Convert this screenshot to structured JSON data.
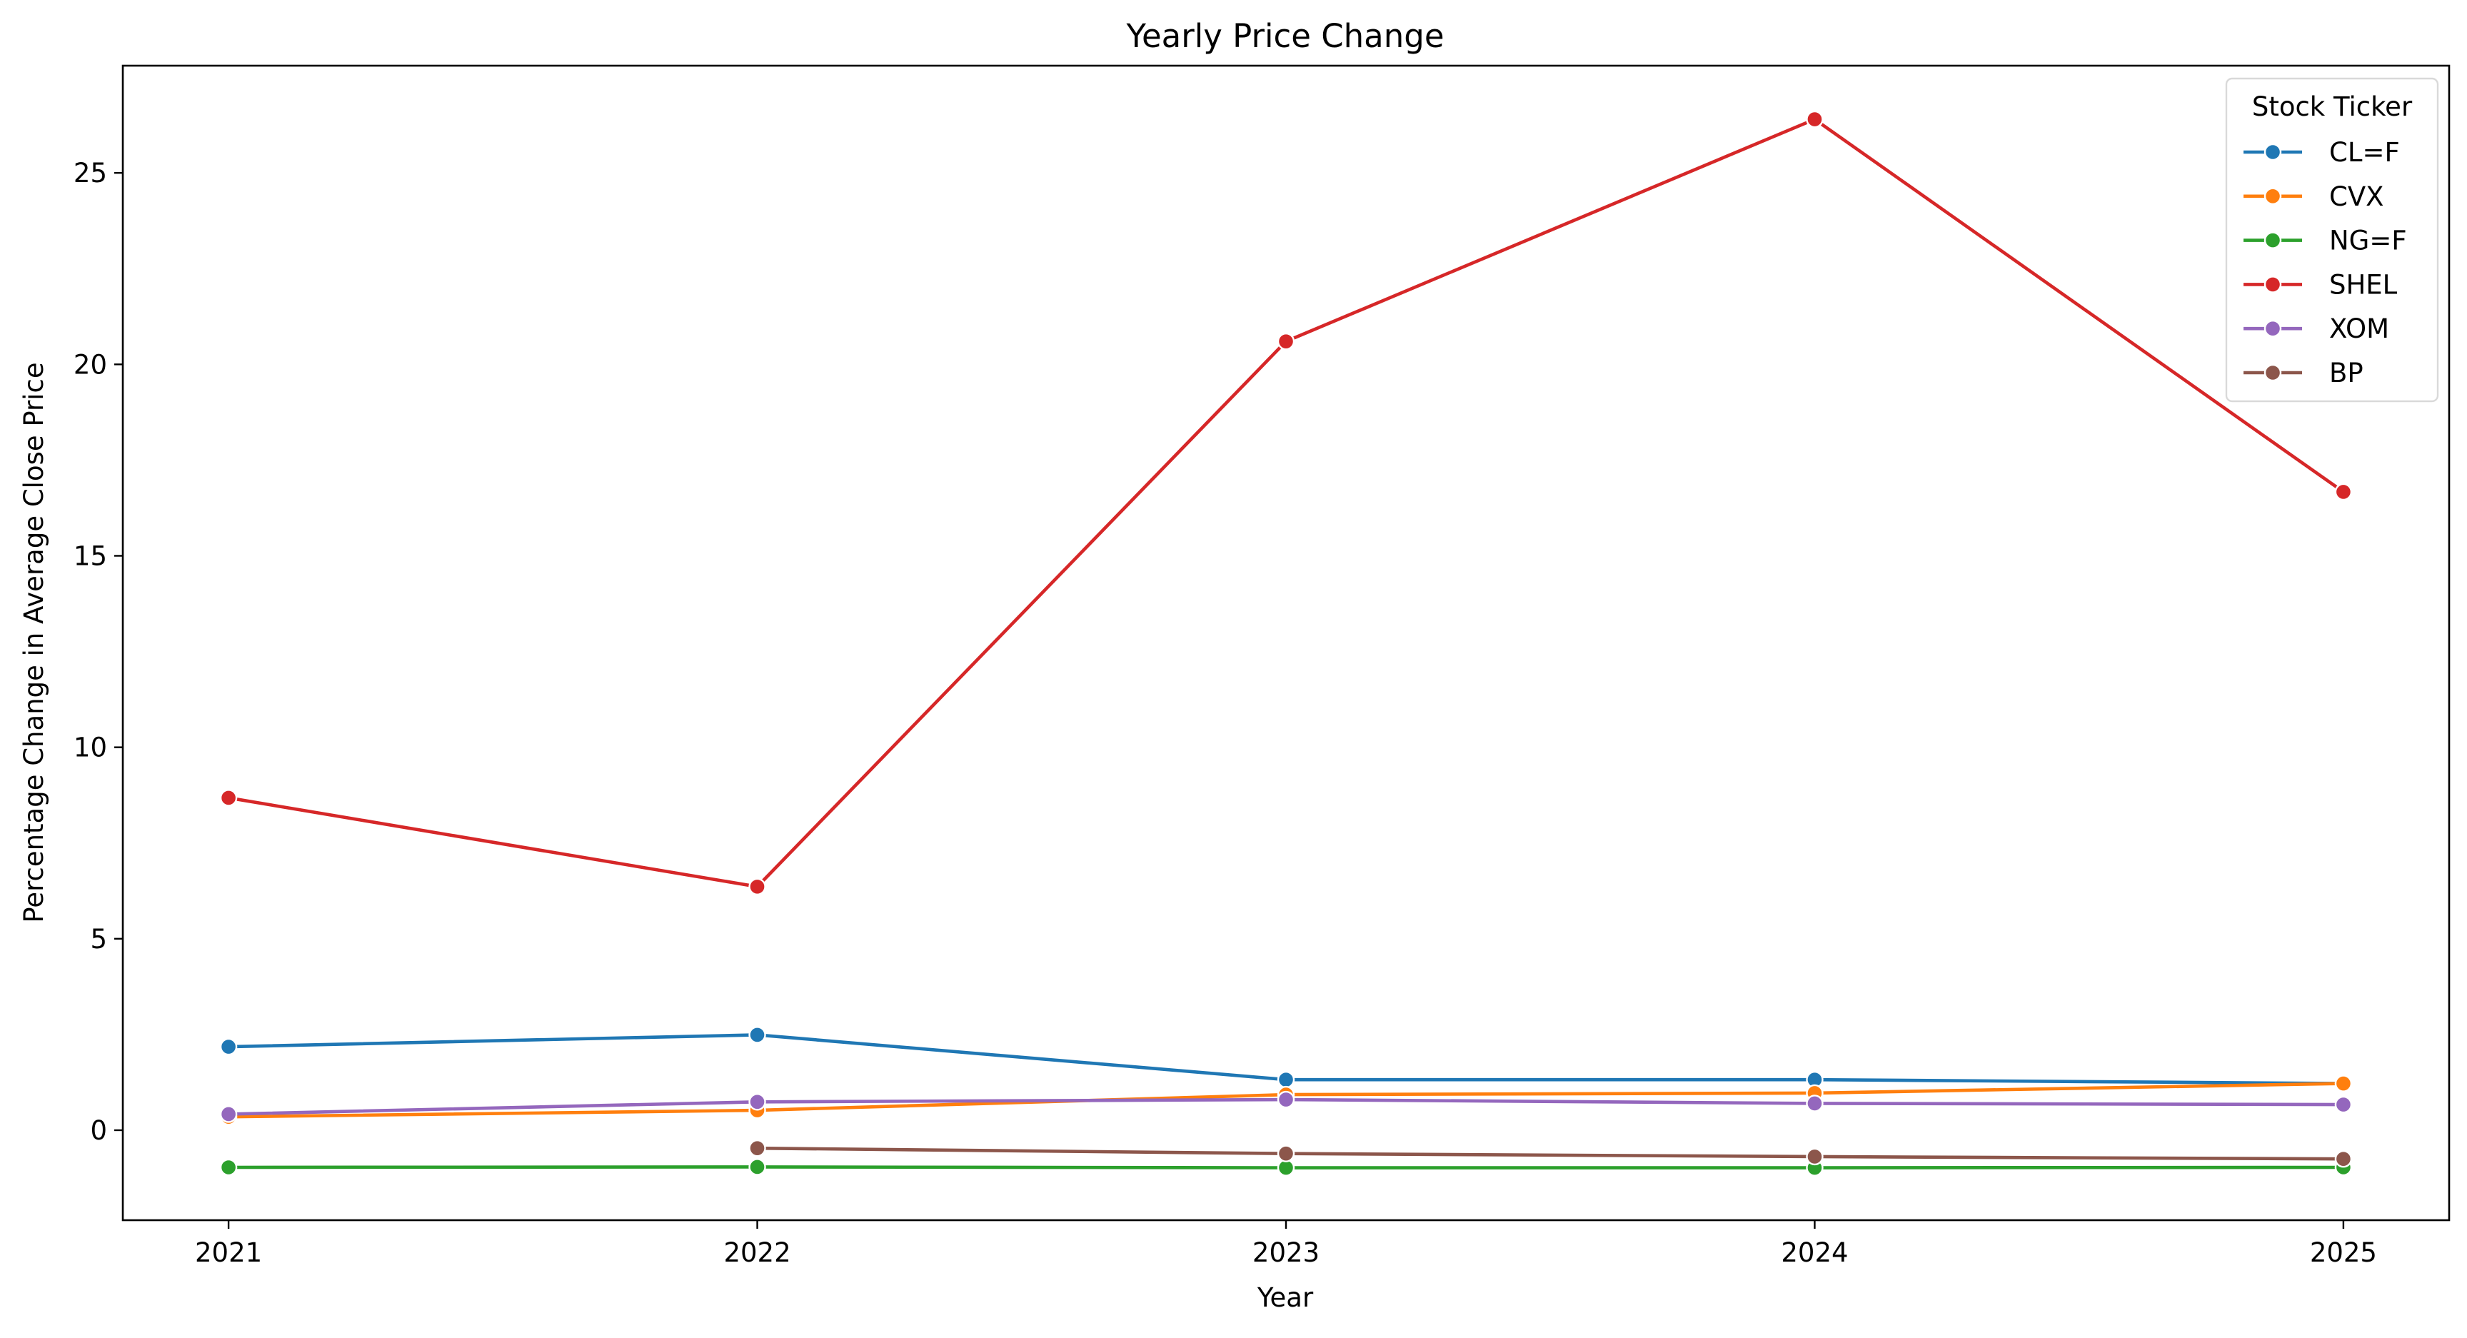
{
  "chart_data": {
    "type": "line",
    "title": "Yearly Price Change",
    "xlabel": "Year",
    "ylabel": "Percentage Change in Average Close Price",
    "x": [
      2021,
      2022,
      2023,
      2024,
      2025
    ],
    "x_tick_labels": [
      "2021",
      "2022",
      "2023",
      "2024",
      "2025"
    ],
    "y_ticks": [
      0,
      5,
      10,
      15,
      20,
      25
    ],
    "y_tick_labels": [
      "0",
      "5",
      "10",
      "15",
      "20",
      "25"
    ],
    "xlim": [
      2020.8,
      2025.2
    ],
    "ylim": [
      -2.35,
      27.8
    ],
    "grid": false,
    "legend": {
      "title": "Stock Ticker",
      "placement": "top-right"
    },
    "series": [
      {
        "name": "CL=F",
        "color": "#1f77b4",
        "values": [
          2.18,
          2.49,
          1.32,
          1.32,
          1.22
        ]
      },
      {
        "name": "CVX",
        "color": "#ff7f0e",
        "values": [
          0.35,
          0.52,
          0.93,
          0.97,
          1.22
        ]
      },
      {
        "name": "NG=F",
        "color": "#2ca02c",
        "values": [
          -0.97,
          -0.96,
          -0.98,
          -0.98,
          -0.97
        ]
      },
      {
        "name": "SHEL",
        "color": "#d62728",
        "values": [
          8.68,
          6.36,
          20.6,
          26.4,
          16.67
        ]
      },
      {
        "name": "XOM",
        "color": "#9467bd",
        "values": [
          0.42,
          0.74,
          0.8,
          0.7,
          0.67
        ]
      },
      {
        "name": "BP",
        "color": "#8c564b",
        "values": [
          null,
          -0.47,
          -0.61,
          -0.69,
          -0.75
        ]
      }
    ]
  }
}
